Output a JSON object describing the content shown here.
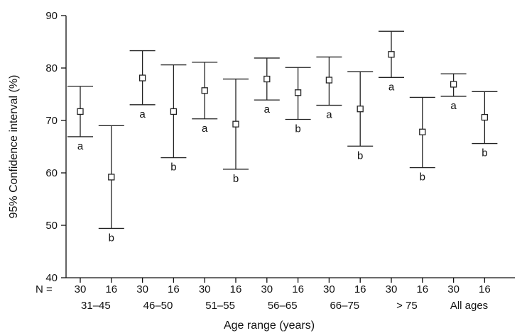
{
  "chart_data": {
    "type": "errorbar",
    "ylabel": "95% Confidence interval (%)",
    "xlabel": "Age range (years)",
    "ylim": [
      40,
      90
    ],
    "yticks": [
      "40",
      "50",
      "60",
      "70",
      "80",
      "90"
    ],
    "n_prefix": "N =",
    "groups": [
      "31–45",
      "46–50",
      "51–55",
      "56–65",
      "66–75",
      "> 75",
      "All ages"
    ],
    "points": [
      {
        "group": "31–45",
        "n": "30",
        "letter": "a",
        "mean": 71.7,
        "low": 66.9,
        "high": 76.5
      },
      {
        "group": "31–45",
        "n": "16",
        "letter": "b",
        "mean": 59.2,
        "low": 49.4,
        "high": 69.0
      },
      {
        "group": "46–50",
        "n": "30",
        "letter": "a",
        "mean": 78.1,
        "low": 73.0,
        "high": 83.3
      },
      {
        "group": "46–50",
        "n": "16",
        "letter": "b",
        "mean": 71.7,
        "low": 62.9,
        "high": 80.6
      },
      {
        "group": "51–55",
        "n": "30",
        "letter": "a",
        "mean": 75.7,
        "low": 70.3,
        "high": 81.1
      },
      {
        "group": "51–55",
        "n": "16",
        "letter": "b",
        "mean": 69.3,
        "low": 60.7,
        "high": 77.9
      },
      {
        "group": "56–65",
        "n": "30",
        "letter": "a",
        "mean": 77.9,
        "low": 73.9,
        "high": 81.9
      },
      {
        "group": "56–65",
        "n": "16",
        "letter": "b",
        "mean": 75.3,
        "low": 70.2,
        "high": 80.1
      },
      {
        "group": "66–75",
        "n": "30",
        "letter": "a",
        "mean": 77.7,
        "low": 72.9,
        "high": 82.1
      },
      {
        "group": "66–75",
        "n": "16",
        "letter": "b",
        "mean": 72.2,
        "low": 65.1,
        "high": 79.3
      },
      {
        "group": "> 75",
        "n": "30",
        "letter": "a",
        "mean": 82.6,
        "low": 78.2,
        "high": 87.0
      },
      {
        "group": "> 75",
        "n": "16",
        "letter": "b",
        "mean": 67.8,
        "low": 61.0,
        "high": 74.4
      },
      {
        "group": "All ages",
        "n": "30",
        "letter": "a",
        "mean": 76.9,
        "low": 74.6,
        "high": 78.9
      },
      {
        "group": "All ages",
        "n": "16",
        "letter": "b",
        "mean": 70.6,
        "low": 65.6,
        "high": 75.5
      }
    ]
  }
}
